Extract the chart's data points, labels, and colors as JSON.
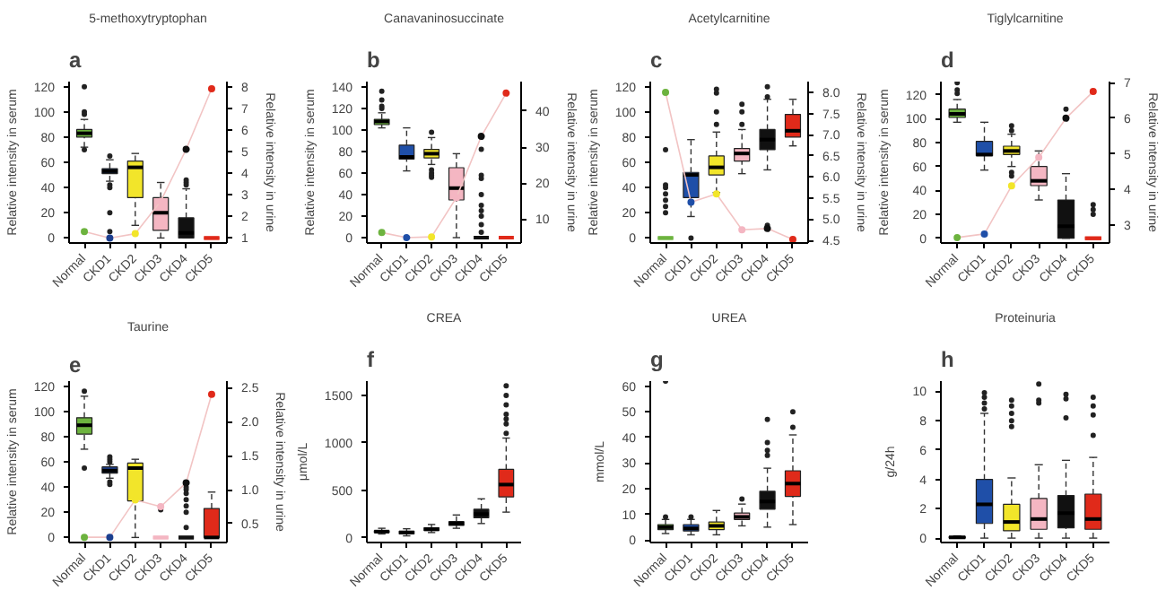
{
  "chart_data": [
    {
      "type": "box",
      "annotations": [
        "a"
      ],
      "title": "5-methoxytryptophan",
      "ylabel": "Relative intensity in serum",
      "y2label": "Relative intensity in urine",
      "categories": [
        "Normal",
        "CKD1",
        "CKD2",
        "CKD3",
        "CKD4",
        "CKD5"
      ],
      "ylim": [
        -4,
        124
      ],
      "yticks": [
        0,
        20,
        40,
        60,
        80,
        100,
        120
      ],
      "y2lim": [
        0.77,
        8.23
      ],
      "y2ticks": [
        1,
        2,
        3,
        4,
        5,
        6,
        7,
        8
      ],
      "series": [
        {
          "line_style": "dashed",
          "colors": [
            "#6db33f",
            "#1c3f8f",
            "#f2e52a",
            "#f4b6c2",
            "#111111",
            "#e02a1a"
          ],
          "boxes": [
            {
              "low": 72,
              "q1": 80,
              "median": 83,
              "q3": 86,
              "high": 94,
              "outliers": [
                70,
                98,
                100,
                120
              ]
            },
            {
              "low": 45,
              "q1": 51,
              "median": 53,
              "q3": 55,
              "high": 62,
              "outliers": [
                0,
                5,
                20,
                40,
                42,
                65
              ]
            },
            {
              "low": 10,
              "q1": 32,
              "median": 56,
              "q3": 61,
              "high": 67
            },
            {
              "low": 0,
              "q1": 6,
              "median": 20,
              "q3": 32,
              "high": 44
            },
            {
              "low": 0,
              "q1": 0,
              "median": 4,
              "q3": 16,
              "high": 39,
              "outliers": [
                42,
                44,
                46
              ]
            },
            {
              "low": 0,
              "q1": 0,
              "median": 0,
              "q3": 0,
              "high": 0
            }
          ]
        },
        {
          "type": "line",
          "axis": "y2",
          "marker": "circle",
          "color": "#f2c4c4",
          "colors": [
            "#6db33f",
            "#1c3f8f",
            "#f2e52a",
            "#f4b6c2",
            "#111111",
            "#e02a1a"
          ],
          "values": [
            1.3,
            1.0,
            1.2,
            2.7,
            5.1,
            7.9
          ]
        }
      ]
    },
    {
      "type": "box",
      "annotations": [
        "b"
      ],
      "title": "Canavaninosuccinate",
      "ylabel": "Relative intensity in serum",
      "y2label": "Relative intensity in urine",
      "categories": [
        "Normal",
        "CKD1",
        "CKD2",
        "CKD3",
        "CKD4",
        "CKD5"
      ],
      "ylim": [
        -5,
        145
      ],
      "yticks": [
        0,
        20,
        40,
        60,
        80,
        100,
        120,
        140
      ],
      "y2lim": [
        3.4,
        48.2
      ],
      "y2ticks": [
        10,
        20,
        30,
        40
      ],
      "series": [
        {
          "line_style": "dashed",
          "colors": [
            "#6db33f",
            "#1f4fa8",
            "#f2e52a",
            "#f4b6c2",
            "#111111",
            "#e02a1a"
          ],
          "boxes": [
            {
              "low": 102,
              "q1": 105,
              "median": 108,
              "q3": 110,
              "high": 116,
              "outliers": [
                120,
                122,
                128,
                136
              ]
            },
            {
              "low": 62,
              "q1": 73,
              "median": 75,
              "q3": 86,
              "high": 102
            },
            {
              "low": 68,
              "q1": 74,
              "median": 78,
              "q3": 82,
              "high": 93,
              "outliers": [
                56,
                58,
                60,
                63,
                98
              ]
            },
            {
              "low": 0,
              "q1": 35,
              "median": 46,
              "q3": 65,
              "high": 78
            },
            {
              "low": 0,
              "q1": 0,
              "median": 0,
              "q3": 0,
              "high": 0,
              "outliers": [
                5,
                12,
                20,
                25,
                30,
                40,
                55,
                58,
                82
              ]
            },
            {
              "low": 0,
              "q1": 0,
              "median": 0,
              "q3": 0,
              "high": 0
            }
          ]
        },
        {
          "type": "line",
          "axis": "y2",
          "marker": "circle",
          "color": "#f2c4c4",
          "colors": [
            "#6db33f",
            "#1f4fa8",
            "#f2e52a",
            "#f4b6c2",
            "#111111",
            "#e02a1a"
          ],
          "values": [
            6.3,
            4.9,
            5.1,
            16,
            33,
            45
          ]
        }
      ]
    },
    {
      "type": "box",
      "annotations": [
        "c"
      ],
      "title": "Acetylcarnitine",
      "ylabel": "Relative intensity in serum",
      "y2label": "Relative intensity in urine",
      "categories": [
        "Normal",
        "CKD1",
        "CKD2",
        "CKD3",
        "CKD4",
        "CKD5"
      ],
      "ylim": [
        -4,
        124
      ],
      "yticks": [
        0,
        20,
        40,
        60,
        80,
        100,
        120
      ],
      "y2lim": [
        4.437,
        8.255
      ],
      "y2ticks": [
        {
          "value": 4.5,
          "label": "4.5"
        },
        {
          "value": 5,
          "label": "5.0"
        },
        {
          "value": 5.5,
          "label": "5.5"
        },
        {
          "value": 6,
          "label": "6.0"
        },
        {
          "value": 6.5,
          "label": "6.5"
        },
        {
          "value": 7,
          "label": "7.0"
        },
        {
          "value": 7.5,
          "label": "7.5"
        },
        {
          "value": 8,
          "label": "8.0"
        }
      ],
      "series": [
        {
          "line_style": "dashed",
          "colors": [
            "#6db33f",
            "#1f4fa8",
            "#f2e52a",
            "#f4b6c2",
            "#111111",
            "#e02a1a"
          ],
          "boxes": [
            {
              "low": 0,
              "q1": 0,
              "median": 0,
              "q3": 0,
              "high": 0,
              "outliers": [
                20,
                25,
                30,
                35,
                40,
                42,
                70
              ]
            },
            {
              "low": 17,
              "q1": 32,
              "median": 50,
              "q3": 52,
              "high": 78,
              "outliers": [
                0,
                28
              ]
            },
            {
              "low": 36,
              "q1": 50,
              "median": 56,
              "q3": 65,
              "high": 84,
              "outliers": [
                90,
                100,
                115,
                118
              ]
            },
            {
              "low": 51,
              "q1": 61,
              "median": 67,
              "q3": 71,
              "high": 86,
              "outliers": [
                90,
                100,
                106
              ]
            },
            {
              "low": 54,
              "q1": 70,
              "median": 78,
              "q3": 86,
              "high": 110,
              "outliers": [
                10,
                112,
                120
              ]
            },
            {
              "low": 73,
              "q1": 80,
              "median": 85,
              "q3": 98,
              "high": 110
            }
          ]
        },
        {
          "type": "line",
          "axis": "y2",
          "marker": "circle",
          "color": "#f2c4c4",
          "colors": [
            "#6db33f",
            "#1f4fa8",
            "#f2e52a",
            "#f4b6c2",
            "#111111",
            "#e02a1a"
          ],
          "values": [
            8.0,
            5.4,
            5.6,
            4.75,
            4.78,
            4.52
          ]
        }
      ]
    },
    {
      "type": "box",
      "annotations": [
        "d"
      ],
      "title": "Tiglylcarnitine",
      "ylabel": "Relative intensity in serum",
      "y2label": "Relative intensity in urine",
      "categories": [
        "Normal",
        "CKD1",
        "CKD2",
        "CKD3",
        "CKD4",
        "CKD5"
      ],
      "ylim": [
        -4,
        131
      ],
      "yticks": [
        0,
        20,
        40,
        60,
        80,
        100,
        120
      ],
      "y2lim": [
        2.496,
        7.029
      ],
      "y2ticks": [
        3,
        4,
        5,
        6,
        7
      ],
      "series": [
        {
          "line_style": "dashed",
          "colors": [
            "#6db33f",
            "#1f4fa8",
            "#f2e52a",
            "#f4b6c2",
            "#111111",
            "#e02a1a"
          ],
          "boxes": [
            {
              "low": 97,
              "q1": 101,
              "median": 104,
              "q3": 108,
              "high": 116,
              "outliers": [
                121,
                124,
                130
              ]
            },
            {
              "low": 57,
              "q1": 69,
              "median": 70,
              "q3": 81,
              "high": 97
            },
            {
              "low": 60,
              "q1": 70,
              "median": 73,
              "q3": 77,
              "high": 87,
              "outliers": [
                52,
                55,
                90,
                94
              ]
            },
            {
              "low": 32,
              "q1": 44,
              "median": 48,
              "q3": 60,
              "high": 73
            },
            {
              "low": 0,
              "q1": 0,
              "median": 10,
              "q3": 32,
              "high": 54,
              "outliers": [
                108
              ]
            },
            {
              "low": 0,
              "q1": 0,
              "median": 0,
              "q3": 0,
              "high": 0,
              "outliers": [
                20,
                24,
                28
              ]
            }
          ]
        },
        {
          "type": "line",
          "axis": "y2",
          "marker": "circle",
          "color": "#f2c4c4",
          "colors": [
            "#6db33f",
            "#1f4fa8",
            "#f2e52a",
            "#f4b6c2",
            "#111111",
            "#e02a1a"
          ],
          "values": [
            2.65,
            2.75,
            4.1,
            4.9,
            6.0,
            6.75
          ]
        }
      ]
    },
    {
      "type": "box",
      "annotations": [
        "e"
      ],
      "title": "Taurine",
      "ylabel": "Relative intensity in serum",
      "y2label": "Relative intensity in urine",
      "categories": [
        "Normal",
        "CKD1",
        "CKD2",
        "CKD3",
        "CKD4",
        "CKD5"
      ],
      "ylim": [
        -4,
        124
      ],
      "yticks": [
        0,
        20,
        40,
        60,
        80,
        100,
        120
      ],
      "y2lim": [
        0.223,
        2.595
      ],
      "y2ticks": [
        {
          "value": 0.5,
          "label": "0.5"
        },
        {
          "value": 1,
          "label": "1.0"
        },
        {
          "value": 1.5,
          "label": "1.5"
        },
        {
          "value": 2,
          "label": "2.0"
        },
        {
          "value": 2.5,
          "label": "2.5"
        }
      ],
      "series": [
        {
          "line_style": "dashed",
          "colors": [
            "#6db33f",
            "#1c3f8f",
            "#f2e52a",
            "#f4b6c2",
            "#111111",
            "#e02a1a"
          ],
          "boxes": [
            {
              "low": 70,
              "q1": 82,
              "median": 89,
              "q3": 95,
              "high": 112,
              "outliers": [
                55,
                116
              ]
            },
            {
              "low": 47,
              "q1": 51,
              "median": 53,
              "q3": 56,
              "high": 58,
              "outliers": [
                42,
                44,
                60,
                62,
                64
              ]
            },
            {
              "low": 0,
              "q1": 29,
              "median": 55,
              "q3": 59,
              "high": 62
            },
            {
              "low": 0,
              "q1": 0,
              "median": 0,
              "q3": 0,
              "high": 0,
              "outliers": [
                22,
                24
              ]
            },
            {
              "low": 0,
              "q1": 0,
              "median": 0,
              "q3": 0,
              "high": 0,
              "outliers": [
                8,
                20,
                25,
                30,
                35,
                38,
                40
              ]
            },
            {
              "low": 0,
              "q1": 0,
              "median": 0,
              "q3": 23,
              "high": 36
            }
          ]
        },
        {
          "type": "line",
          "axis": "y2",
          "marker": "circle",
          "color": "#f2c4c4",
          "colors": [
            "#6db33f",
            "#1c3f8f",
            "#f2e52a",
            "#f4b6c2",
            "#111111",
            "#e02a1a"
          ],
          "values": [
            0.3,
            0.3,
            0.85,
            0.75,
            1.1,
            2.4
          ]
        }
      ]
    },
    {
      "type": "box",
      "annotations": [
        "f"
      ],
      "title": "CREA",
      "ylabel": "μmol/L",
      "categories": [
        "Normal",
        "CKD1",
        "CKD2",
        "CKD3",
        "CKD4",
        "CKD5"
      ],
      "ylim": [
        -50,
        1650
      ],
      "yticks": [
        0,
        500,
        1000,
        1500
      ],
      "series": [
        {
          "line_style": "dashed",
          "colors": [
            "#111111",
            "#111111",
            "#111111",
            "#111111",
            "#111111",
            "#e02a1a"
          ],
          "boxes": [
            {
              "low": 40,
              "q1": 55,
              "median": 65,
              "q3": 75,
              "high": 100
            },
            {
              "low": 20,
              "q1": 40,
              "median": 55,
              "q3": 70,
              "high": 95
            },
            {
              "low": 55,
              "q1": 75,
              "median": 90,
              "q3": 105,
              "high": 140
            },
            {
              "low": 100,
              "q1": 130,
              "median": 150,
              "q3": 170,
              "high": 240
            },
            {
              "low": 150,
              "q1": 210,
              "median": 250,
              "q3": 300,
              "high": 410
            },
            {
              "low": 270,
              "q1": 430,
              "median": 560,
              "q3": 720,
              "high": 1050,
              "outliers": [
                1100,
                1200,
                1250,
                1300,
                1400,
                1500,
                1600
              ]
            }
          ]
        }
      ]
    },
    {
      "type": "box",
      "annotations": [
        "g"
      ],
      "title": "UREA",
      "ylabel": "mmol/L",
      "categories": [
        "Normal",
        "CKD1",
        "CKD2",
        "CKD3",
        "CKD4",
        "CKD5"
      ],
      "ylim": [
        -1,
        62
      ],
      "yticks": [
        0,
        10,
        20,
        30,
        40,
        50,
        60
      ],
      "series": [
        {
          "line_style": "dashed",
          "colors": [
            "#6db33f",
            "#1f4fa8",
            "#f2e52a",
            "#f4b6c2",
            "#111111",
            "#e02a1a"
          ],
          "boxes": [
            {
              "low": 2.5,
              "q1": 4,
              "median": 5,
              "q3": 6,
              "high": 8,
              "outliers": [
                9,
                62
              ]
            },
            {
              "low": 2,
              "q1": 3.5,
              "median": 4.5,
              "q3": 6,
              "high": 8,
              "outliers": [
                9
              ]
            },
            {
              "low": 2,
              "q1": 4,
              "median": 5.5,
              "q3": 7,
              "high": 11.5
            },
            {
              "low": 5.5,
              "q1": 8,
              "median": 9,
              "q3": 10.5,
              "high": 14,
              "outliers": [
                16
              ]
            },
            {
              "low": 5,
              "q1": 12,
              "median": 15,
              "q3": 19,
              "high": 28,
              "outliers": [
                33,
                35,
                38,
                47
              ]
            },
            {
              "low": 6,
              "q1": 17,
              "median": 22,
              "q3": 27,
              "high": 41,
              "outliers": [
                44,
                50
              ]
            }
          ]
        }
      ]
    },
    {
      "type": "box",
      "annotations": [
        "h"
      ],
      "title": "Proteinuria",
      "ylabel": "g/24h",
      "categories": [
        "Normal",
        "CKD1",
        "CKD2",
        "CKD3",
        "CKD4",
        "CKD5"
      ],
      "ylim": [
        -0.3,
        10.7
      ],
      "yticks": [
        0,
        2,
        4,
        6,
        8,
        10
      ],
      "series": [
        {
          "line_style": "dashed",
          "colors": [
            "#6db33f",
            "#1f4fa8",
            "#f2e52a",
            "#f4b6c2",
            "#111111",
            "#e02a1a"
          ],
          "boxes": [
            {
              "low": 0,
              "q1": 0,
              "median": 0.05,
              "q3": 0.1,
              "high": 0.15
            },
            {
              "low": 0,
              "q1": 1,
              "median": 2.3,
              "q3": 4,
              "high": 8.5,
              "outliers": [
                8.8,
                9.2,
                9.6,
                9.9
              ]
            },
            {
              "low": 0,
              "q1": 0.5,
              "median": 1.1,
              "q3": 2.3,
              "high": 4.1,
              "outliers": [
                7.6,
                8,
                8.5,
                9,
                9.4
              ]
            },
            {
              "low": 0,
              "q1": 0.6,
              "median": 1.3,
              "q3": 2.7,
              "high": 5,
              "outliers": [
                9.2,
                9.4,
                10.5
              ]
            },
            {
              "low": 0,
              "q1": 0.7,
              "median": 1.7,
              "q3": 2.9,
              "high": 5.3,
              "outliers": [
                8.2,
                9.5,
                9.8
              ]
            },
            {
              "low": 0,
              "q1": 0.6,
              "median": 1.3,
              "q3": 3,
              "high": 5.5,
              "outliers": [
                7,
                8.4,
                9,
                9.6
              ]
            }
          ]
        }
      ]
    }
  ]
}
